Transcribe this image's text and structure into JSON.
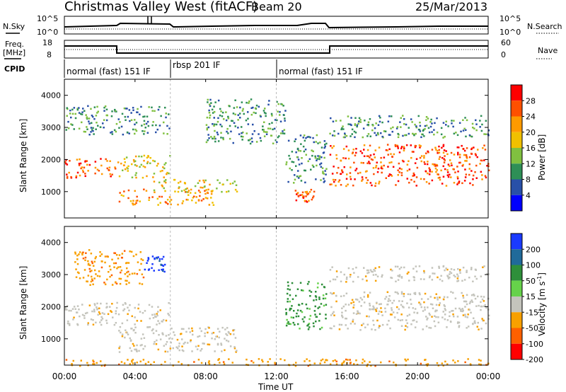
{
  "header": {
    "title": "Christmas Valley West (fitACF)",
    "beam": "Beam 20",
    "date": "25/Mar/2013"
  },
  "nsky_panel": {
    "left_label": "N.Sky",
    "right_label": "N.Search",
    "ytick_top": "10^5",
    "ytick_bottom": "10^0"
  },
  "freq_panel": {
    "left_label_1": "Freq.",
    "left_label_2": "[MHz]",
    "left_ticks": [
      "18",
      "8"
    ],
    "right_ticks": [
      "60",
      "0"
    ],
    "right_label": "Nave"
  },
  "cpid": {
    "label": "CPID",
    "segments": [
      {
        "text": "normal (fast) 151 IF",
        "start_h": 0,
        "end_h": 6
      },
      {
        "text": "rbsp 201 IF",
        "start_h": 6,
        "end_h": 12
      },
      {
        "text": "normal (fast) 151 IF",
        "start_h": 12,
        "end_h": 24
      }
    ]
  },
  "power_panel": {
    "ylabel": "Slant Range [km]",
    "yticks": [
      "1000",
      "2000",
      "3000",
      "4000"
    ],
    "colorbar_label": "Power [dB]",
    "colorbar_ticks": [
      "28",
      "24",
      "20",
      "16",
      "12",
      "8",
      "4"
    ],
    "colors": [
      "#ff0000",
      "#ff5000",
      "#ff9a00",
      "#f0c000",
      "#80c040",
      "#2e8f56",
      "#2850a8",
      "#0000ff"
    ]
  },
  "velocity_panel": {
    "ylabel": "Slant Range [km]",
    "yticks": [
      "1000",
      "2000",
      "3000",
      "4000"
    ],
    "colorbar_label": "Velocity [m s",
    "colorbar_label_sup": "-1",
    "colorbar_label_end": "]",
    "colorbar_ticks": [
      "200",
      "100",
      "50",
      "15",
      "-15",
      "-50",
      "-100",
      "-200"
    ],
    "colors": [
      "#1a3aff",
      "#206a9a",
      "#2e8f3a",
      "#66d24a",
      "#c4c4bc",
      "#f8a000",
      "#ff6000",
      "#ff0000"
    ]
  },
  "x_axis": {
    "label": "Time UT",
    "ticks": [
      "00:00",
      "04:00",
      "08:00",
      "12:00",
      "16:00",
      "20:00",
      "00:00"
    ]
  },
  "chart_data": {
    "type": "heatmap",
    "title": "Christmas Valley West (fitACF)",
    "xlabel": "Time UT",
    "ylabel": "Slant Range [km]",
    "xlim": [
      0,
      24
    ],
    "ylim": [
      180,
      4500
    ],
    "series": [
      {
        "name": "Power [dB]",
        "regions": [
          {
            "t0": 0.0,
            "t1": 2.9,
            "r0": 1450,
            "r1": 2100,
            "value": 24
          },
          {
            "t0": 3.0,
            "t1": 6.0,
            "r0": 1450,
            "r1": 2150,
            "value": 16
          },
          {
            "t0": 0.0,
            "t1": 6.0,
            "r0": 2800,
            "r1": 3700,
            "value": 8
          },
          {
            "t0": 3.0,
            "t1": 8.5,
            "r0": 600,
            "r1": 1100,
            "value": 20
          },
          {
            "t0": 5.0,
            "t1": 9.8,
            "r0": 1000,
            "r1": 1400,
            "value": 16
          },
          {
            "t0": 8.0,
            "t1": 12.5,
            "r0": 2500,
            "r1": 3900,
            "value": 8
          },
          {
            "t0": 12.5,
            "t1": 14.8,
            "r0": 1300,
            "r1": 2800,
            "value": 8
          },
          {
            "t0": 13.0,
            "t1": 14.2,
            "r0": 700,
            "r1": 1100,
            "value": 24
          },
          {
            "t0": 15.0,
            "t1": 24.0,
            "r0": 1200,
            "r1": 2500,
            "value": 24
          },
          {
            "t0": 15.0,
            "t1": 24.0,
            "r0": 2700,
            "r1": 3400,
            "value": 8
          }
        ]
      },
      {
        "name": "Velocity [m s-1]",
        "regions": [
          {
            "t0": 0.0,
            "t1": 6.0,
            "r0": 1450,
            "r1": 2150,
            "value": 0
          },
          {
            "t0": 0.5,
            "t1": 4.5,
            "r0": 2700,
            "r1": 3800,
            "value": -50
          },
          {
            "t0": 4.5,
            "t1": 5.7,
            "r0": 3100,
            "r1": 3600,
            "value": 200
          },
          {
            "t0": 3.0,
            "t1": 9.8,
            "r0": 600,
            "r1": 1400,
            "value": 0
          },
          {
            "t0": 12.5,
            "t1": 14.8,
            "r0": 1300,
            "r1": 2800,
            "value": 50
          },
          {
            "t0": 15.0,
            "t1": 24.0,
            "r0": 1300,
            "r1": 2500,
            "value": 0
          },
          {
            "t0": 15.0,
            "t1": 24.0,
            "r0": 2800,
            "r1": 3300,
            "value": 0
          },
          {
            "t0": 0.0,
            "t1": 24.0,
            "r0": 180,
            "r1": 400,
            "value": -50
          }
        ]
      }
    ]
  }
}
